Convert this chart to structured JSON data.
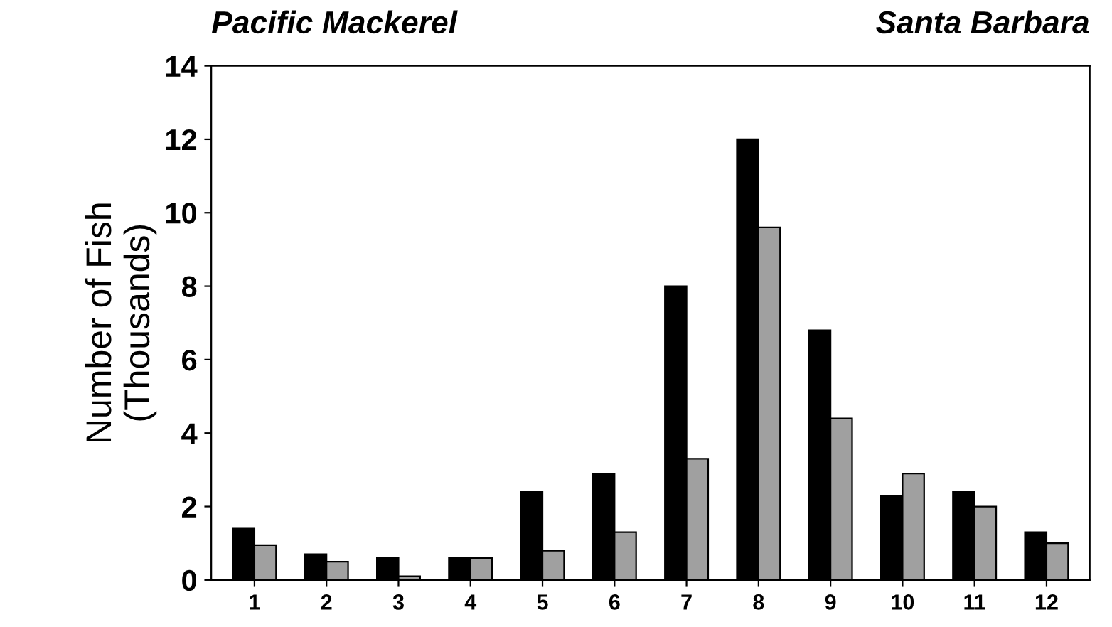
{
  "chart_data": {
    "type": "bar",
    "title": "Pacific Mackerel",
    "subtitle": "Santa Barbara",
    "ylabel": "Number of Fish\n(Thousands)",
    "categories": [
      "1",
      "2",
      "3",
      "4",
      "5",
      "6",
      "7",
      "8",
      "9",
      "10",
      "11",
      "12"
    ],
    "series": [
      {
        "color": "#000000",
        "values": [
          1.4,
          0.7,
          0.6,
          0.6,
          2.4,
          2.9,
          8.0,
          12.0,
          6.8,
          2.3,
          2.4,
          1.3
        ]
      },
      {
        "color": "#a0a0a0",
        "values": [
          0.95,
          0.5,
          0.1,
          0.6,
          0.8,
          1.3,
          3.3,
          9.6,
          4.4,
          2.9,
          2.0,
          1.0
        ]
      }
    ],
    "ylim": [
      0,
      14
    ],
    "yticks": [
      0,
      2,
      4,
      6,
      8,
      10,
      12,
      14
    ],
    "grid": false,
    "legend": false
  }
}
